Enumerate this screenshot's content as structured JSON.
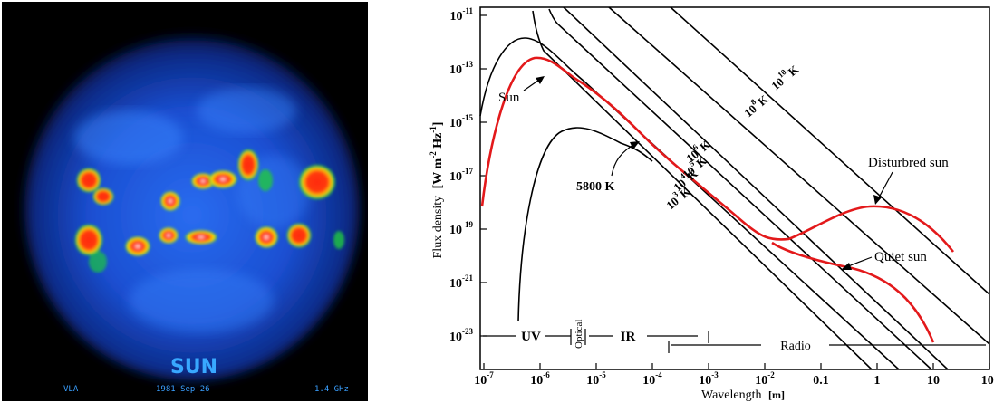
{
  "image": {
    "caption": "SUN",
    "footer_left": "VLA",
    "footer_date": "1981 Sep 26",
    "footer_freq": "1.4 GHz",
    "colors": {
      "background": "#000000",
      "disk": "#1a4fd6",
      "emission_core": "#ff2a10",
      "emission_mid": "#ffe000",
      "emission_edge": "#20c840"
    }
  },
  "plot": {
    "ylabel_main": "Flux density",
    "ylabel_units": "[W m",
    "ylabel_units_sup1": "-2",
    "ylabel_units_mid": " Hz",
    "ylabel_units_sup2": "-1",
    "ylabel_units_end": "]",
    "xlabel": "Wavelength",
    "xlabel_unit": "[m]",
    "y_ticks": [
      {
        "base": "10",
        "exp": "-11"
      },
      {
        "base": "10",
        "exp": "-13"
      },
      {
        "base": "10",
        "exp": "-15"
      },
      {
        "base": "10",
        "exp": "-17"
      },
      {
        "base": "10",
        "exp": "-19"
      },
      {
        "base": "10",
        "exp": "-21"
      },
      {
        "base": "10",
        "exp": "-23"
      }
    ],
    "x_ticks": [
      {
        "base": "10",
        "exp": "-7"
      },
      {
        "base": "10",
        "exp": "-6"
      },
      {
        "base": "10",
        "exp": "-5"
      },
      {
        "base": "10",
        "exp": "-4"
      },
      {
        "base": "10",
        "exp": "-3"
      },
      {
        "base": "10",
        "exp": "-2"
      },
      {
        "base": "0.1",
        "exp": ""
      },
      {
        "base": "1",
        "exp": ""
      },
      {
        "base": "10",
        "exp": ""
      },
      {
        "base": "10",
        "exp": "2"
      }
    ],
    "bands": {
      "uv": "UV",
      "optical": "Optical",
      "ir": "IR",
      "radio": "Radio"
    },
    "temps": [
      {
        "base": "10",
        "exp": "10",
        "unit": "K"
      },
      {
        "base": "10",
        "exp": "8",
        "unit": "K"
      },
      {
        "base": "10",
        "exp": "6",
        "unit": "K"
      },
      {
        "base": "10",
        "exp": "5",
        "unit": "K"
      },
      {
        "base": "10",
        "exp": "4",
        "unit": "K"
      },
      {
        "base": "10",
        "exp": "3",
        "unit": "K"
      }
    ],
    "labels": {
      "sun": "Sun",
      "bb5800": "5800 K",
      "disturbed": "Disturbred sun",
      "quiet": "Quiet sun"
    },
    "colors": {
      "sun_curve": "#e3191b",
      "lines": "#000000"
    }
  }
}
